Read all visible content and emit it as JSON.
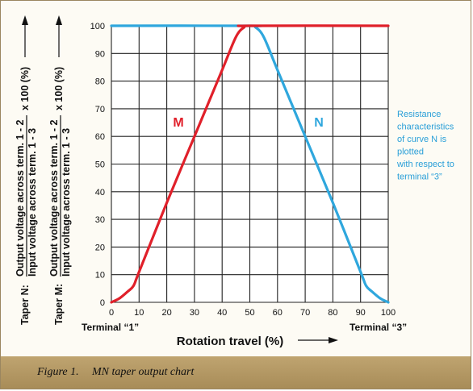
{
  "chart_data": {
    "type": "line",
    "title": "",
    "xlabel": "Rotation travel (%)",
    "ylabel_n": {
      "prefix": "Taper N:",
      "numerator": "Output voltage across term. 1 - 2",
      "denominator": "Input voltage across term. 1 - 3",
      "multiplier": "x 100 (%)"
    },
    "ylabel_m": {
      "prefix": "Taper M:",
      "numerator": "Output voltage across term. 1 - 2",
      "denominator": "Input voltage across term. 1 - 3",
      "multiplier": "x 100 (%)"
    },
    "xlim": [
      0,
      100
    ],
    "ylim": [
      0,
      100
    ],
    "xticks": [
      "0",
      "10",
      "20",
      "30",
      "40",
      "50",
      "60",
      "70",
      "80",
      "90",
      "100"
    ],
    "yticks": [
      "0",
      "10",
      "20",
      "30",
      "40",
      "50",
      "60",
      "70",
      "80",
      "90",
      "100"
    ],
    "grid": true,
    "terminal_left": "Terminal “1”",
    "terminal_right": "Terminal “3”",
    "series": [
      {
        "name": "M",
        "color": "#e0202a",
        "x": [
          0,
          3,
          6,
          8,
          10,
          20,
          30,
          40,
          45,
          48,
          50,
          100
        ],
        "y": [
          0,
          1.5,
          4,
          6,
          11,
          36,
          60,
          84,
          96,
          99.5,
          100,
          100
        ]
      },
      {
        "name": "N",
        "color": "#2fa7dd",
        "x": [
          0,
          50,
          52,
          55,
          60,
          70,
          80,
          90,
          92,
          94,
          97,
          100
        ],
        "y": [
          100,
          100,
          99.5,
          96,
          84,
          60,
          36,
          11,
          6,
          4,
          1.5,
          0
        ]
      }
    ],
    "annotation": [
      "Resistance",
      "characteristics",
      "of curve N is",
      "plotted",
      "with respect to",
      "terminal “3”"
    ]
  },
  "caption": {
    "label": "Figure 1.",
    "text": "MN taper output chart"
  }
}
